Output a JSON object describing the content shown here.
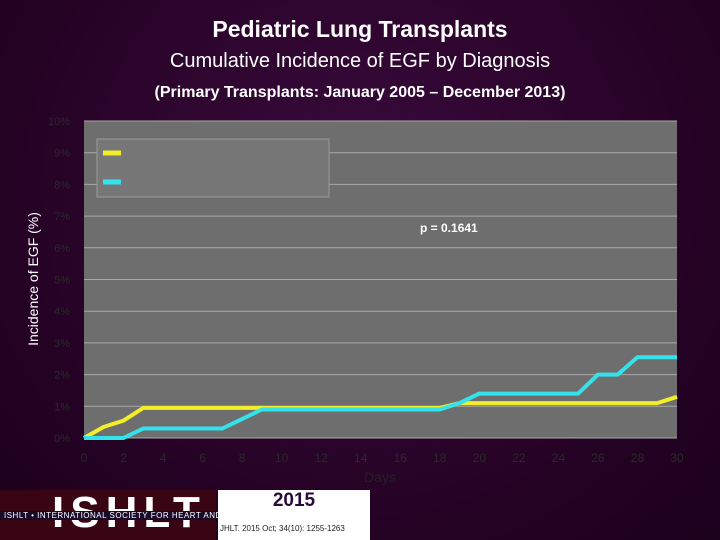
{
  "header": {
    "title": "Pediatric Lung Transplants",
    "subtitle": "Cumulative Incidence of EGF by Diagnosis",
    "note": "(Primary Transplants: January 2005 – December 2013)"
  },
  "footer": {
    "logo_text": "ISHLT",
    "band_text": "ISHLT • INTERNATIONAL SOCIETY FOR HEART AND LUNG TRANSPLANTATION",
    "year": "2015",
    "citation": "JHLT. 2015 Oct; 34(10): 1255-1263"
  },
  "colors": {
    "plot_bg": "#6e6e6e",
    "grid": "#a8a8a8",
    "series_yellow": "#f2ee2a",
    "series_cyan": "#33e3ec"
  },
  "chart_data": {
    "type": "line",
    "xlabel": "Days",
    "ylabel": "Incidence of EGF (%)",
    "xlim": [
      0,
      30
    ],
    "ylim": [
      0,
      10
    ],
    "x_ticks": [
      "0",
      "2",
      "4",
      "6",
      "8",
      "10",
      "12",
      "14",
      "16",
      "18",
      "20",
      "22",
      "24",
      "26",
      "28",
      "30"
    ],
    "y_ticks": [
      "0%",
      "1%",
      "2%",
      "3%",
      "4%",
      "5%",
      "6%",
      "7%",
      "8%",
      "9%",
      "10%"
    ],
    "annotation": "p = 0.1641",
    "legend_position": "top-left",
    "grid": true,
    "series": [
      {
        "color": "#f2ee2a",
        "points": [
          [
            0,
            0
          ],
          [
            1,
            0.35
          ],
          [
            2,
            0.55
          ],
          [
            3,
            0.95
          ],
          [
            4,
            0.95
          ],
          [
            5,
            0.95
          ],
          [
            6,
            0.95
          ],
          [
            7,
            0.95
          ],
          [
            8,
            0.95
          ],
          [
            9,
            0.95
          ],
          [
            10,
            0.95
          ],
          [
            11,
            0.95
          ],
          [
            12,
            0.95
          ],
          [
            13,
            0.95
          ],
          [
            14,
            0.95
          ],
          [
            15,
            0.95
          ],
          [
            16,
            0.95
          ],
          [
            17,
            0.95
          ],
          [
            18,
            0.95
          ],
          [
            19,
            1.1
          ],
          [
            20,
            1.1
          ],
          [
            21,
            1.1
          ],
          [
            22,
            1.1
          ],
          [
            23,
            1.1
          ],
          [
            24,
            1.1
          ],
          [
            25,
            1.1
          ],
          [
            26,
            1.1
          ],
          [
            27,
            1.1
          ],
          [
            28,
            1.1
          ],
          [
            29,
            1.1
          ],
          [
            30,
            1.3
          ]
        ]
      },
      {
        "color": "#33e3ec",
        "points": [
          [
            0,
            0
          ],
          [
            1,
            0
          ],
          [
            2,
            0
          ],
          [
            3,
            0.3
          ],
          [
            4,
            0.3
          ],
          [
            5,
            0.3
          ],
          [
            6,
            0.3
          ],
          [
            7,
            0.3
          ],
          [
            8,
            0.6
          ],
          [
            9,
            0.9
          ],
          [
            10,
            0.9
          ],
          [
            11,
            0.9
          ],
          [
            12,
            0.9
          ],
          [
            13,
            0.9
          ],
          [
            14,
            0.9
          ],
          [
            15,
            0.9
          ],
          [
            16,
            0.9
          ],
          [
            17,
            0.9
          ],
          [
            18,
            0.9
          ],
          [
            19,
            1.1
          ],
          [
            20,
            1.4
          ],
          [
            21,
            1.4
          ],
          [
            22,
            1.4
          ],
          [
            23,
            1.4
          ],
          [
            24,
            1.4
          ],
          [
            25,
            1.4
          ],
          [
            26,
            2.0
          ],
          [
            27,
            2.0
          ],
          [
            28,
            2.55
          ],
          [
            29,
            2.55
          ],
          [
            30,
            2.55
          ]
        ]
      }
    ]
  }
}
